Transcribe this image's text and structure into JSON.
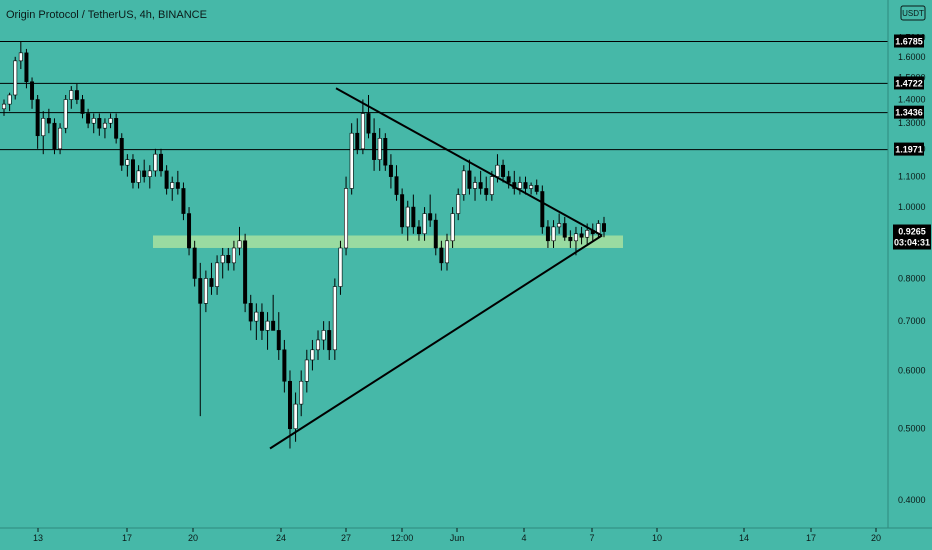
{
  "header": {
    "title": "Origin Protocol / TetherUS, 4h, BINANCE",
    "currency_badge": "USDT"
  },
  "colors": {
    "background": "#46b8a8",
    "candle_up": "#ffffff",
    "candle_down": "#000000",
    "lines": "#000000",
    "zone": "#a8e0a0",
    "price_tag": "#000000"
  },
  "chart_data": {
    "type": "candlestick",
    "ylim": [
      0.37,
      1.74
    ],
    "y_scale": "log",
    "y_ticks": [
      "0.4000",
      "0.5000",
      "0.6000",
      "0.7000",
      "0.8000",
      "0.9000",
      "1.0000",
      "1.1000",
      "1.2000",
      "1.3000",
      "1.4000",
      "1.5000",
      "1.6000",
      "1.7000"
    ],
    "x_ticks": [
      "13",
      "17",
      "20",
      "24",
      "27",
      "12:00",
      "Jun",
      "4",
      "7",
      "10",
      "14",
      "17",
      "20"
    ],
    "horizontal_levels": [
      {
        "label": "1.6785",
        "value": 1.6785
      },
      {
        "label": "1.4722",
        "value": 1.4722
      },
      {
        "label": "1.3436",
        "value": 1.3436
      },
      {
        "label": "1.1971",
        "value": 1.1971
      }
    ],
    "current_price": {
      "label": "0.9265",
      "value": 0.9265,
      "countdown": "03:04:31"
    },
    "support_zone": {
      "low": 0.88,
      "high": 0.915
    },
    "triangle": {
      "upper_start": 1.45,
      "lower_start": 0.47,
      "apex": 0.915
    },
    "candles": [
      [
        1.36,
        1.4,
        1.33,
        1.38
      ],
      [
        1.38,
        1.43,
        1.35,
        1.42
      ],
      [
        1.42,
        1.6,
        1.4,
        1.58
      ],
      [
        1.58,
        1.68,
        1.54,
        1.62
      ],
      [
        1.62,
        1.64,
        1.45,
        1.48
      ],
      [
        1.48,
        1.5,
        1.36,
        1.4
      ],
      [
        1.4,
        1.42,
        1.2,
        1.25
      ],
      [
        1.25,
        1.35,
        1.18,
        1.32
      ],
      [
        1.32,
        1.36,
        1.26,
        1.3
      ],
      [
        1.3,
        1.32,
        1.18,
        1.2
      ],
      [
        1.2,
        1.3,
        1.18,
        1.28
      ],
      [
        1.28,
        1.42,
        1.26,
        1.4
      ],
      [
        1.4,
        1.46,
        1.36,
        1.44
      ],
      [
        1.44,
        1.47,
        1.38,
        1.4
      ],
      [
        1.4,
        1.42,
        1.32,
        1.34
      ],
      [
        1.34,
        1.36,
        1.28,
        1.3
      ],
      [
        1.3,
        1.34,
        1.26,
        1.32
      ],
      [
        1.32,
        1.34,
        1.25,
        1.28
      ],
      [
        1.28,
        1.32,
        1.24,
        1.3
      ],
      [
        1.3,
        1.34,
        1.28,
        1.32
      ],
      [
        1.32,
        1.34,
        1.22,
        1.24
      ],
      [
        1.24,
        1.26,
        1.12,
        1.14
      ],
      [
        1.14,
        1.18,
        1.1,
        1.16
      ],
      [
        1.16,
        1.18,
        1.06,
        1.08
      ],
      [
        1.08,
        1.14,
        1.06,
        1.12
      ],
      [
        1.12,
        1.16,
        1.08,
        1.1
      ],
      [
        1.1,
        1.14,
        1.06,
        1.12
      ],
      [
        1.12,
        1.2,
        1.1,
        1.18
      ],
      [
        1.18,
        1.2,
        1.1,
        1.12
      ],
      [
        1.12,
        1.14,
        1.04,
        1.06
      ],
      [
        1.06,
        1.1,
        1.02,
        1.08
      ],
      [
        1.08,
        1.12,
        1.04,
        1.06
      ],
      [
        1.06,
        1.08,
        0.96,
        0.98
      ],
      [
        0.98,
        1.0,
        0.86,
        0.88
      ],
      [
        0.88,
        0.9,
        0.78,
        0.8
      ],
      [
        0.8,
        0.84,
        0.52,
        0.74
      ],
      [
        0.74,
        0.82,
        0.72,
        0.8
      ],
      [
        0.8,
        0.84,
        0.76,
        0.78
      ],
      [
        0.78,
        0.86,
        0.76,
        0.84
      ],
      [
        0.84,
        0.88,
        0.8,
        0.86
      ],
      [
        0.86,
        0.88,
        0.82,
        0.84
      ],
      [
        0.84,
        0.9,
        0.82,
        0.88
      ],
      [
        0.88,
        0.94,
        0.86,
        0.9
      ],
      [
        0.9,
        0.92,
        0.72,
        0.74
      ],
      [
        0.74,
        0.76,
        0.68,
        0.7
      ],
      [
        0.7,
        0.74,
        0.66,
        0.72
      ],
      [
        0.72,
        0.74,
        0.66,
        0.68
      ],
      [
        0.68,
        0.72,
        0.64,
        0.7
      ],
      [
        0.7,
        0.76,
        0.68,
        0.68
      ],
      [
        0.68,
        0.72,
        0.62,
        0.64
      ],
      [
        0.64,
        0.66,
        0.56,
        0.58
      ],
      [
        0.58,
        0.6,
        0.47,
        0.5
      ],
      [
        0.5,
        0.56,
        0.48,
        0.54
      ],
      [
        0.54,
        0.6,
        0.52,
        0.58
      ],
      [
        0.58,
        0.64,
        0.56,
        0.62
      ],
      [
        0.62,
        0.66,
        0.6,
        0.64
      ],
      [
        0.64,
        0.68,
        0.62,
        0.66
      ],
      [
        0.66,
        0.7,
        0.64,
        0.68
      ],
      [
        0.68,
        0.7,
        0.62,
        0.64
      ],
      [
        0.64,
        0.8,
        0.62,
        0.78
      ],
      [
        0.78,
        0.9,
        0.76,
        0.88
      ],
      [
        0.88,
        1.1,
        0.86,
        1.06
      ],
      [
        1.06,
        1.3,
        1.04,
        1.26
      ],
      [
        1.26,
        1.32,
        1.18,
        1.2
      ],
      [
        1.2,
        1.4,
        1.18,
        1.34
      ],
      [
        1.34,
        1.42,
        1.24,
        1.26
      ],
      [
        1.26,
        1.32,
        1.12,
        1.16
      ],
      [
        1.16,
        1.28,
        1.12,
        1.24
      ],
      [
        1.24,
        1.26,
        1.12,
        1.14
      ],
      [
        1.14,
        1.18,
        1.06,
        1.1
      ],
      [
        1.1,
        1.14,
        1.02,
        1.04
      ],
      [
        1.04,
        1.06,
        0.92,
        0.94
      ],
      [
        0.94,
        1.02,
        0.9,
        1.0
      ],
      [
        1.0,
        1.04,
        0.92,
        0.94
      ],
      [
        0.94,
        0.96,
        0.9,
        0.92
      ],
      [
        0.92,
        1.0,
        0.9,
        0.98
      ],
      [
        0.98,
        1.04,
        0.94,
        0.96
      ],
      [
        0.96,
        0.98,
        0.86,
        0.88
      ],
      [
        0.88,
        0.9,
        0.82,
        0.84
      ],
      [
        0.84,
        0.92,
        0.82,
        0.9
      ],
      [
        0.9,
        1.0,
        0.88,
        0.98
      ],
      [
        0.98,
        1.06,
        0.96,
        1.04
      ],
      [
        1.04,
        1.14,
        1.02,
        1.12
      ],
      [
        1.12,
        1.16,
        1.04,
        1.06
      ],
      [
        1.06,
        1.1,
        1.02,
        1.08
      ],
      [
        1.08,
        1.12,
        1.04,
        1.06
      ],
      [
        1.06,
        1.1,
        1.02,
        1.04
      ],
      [
        1.04,
        1.12,
        1.02,
        1.1
      ],
      [
        1.1,
        1.18,
        1.08,
        1.14
      ],
      [
        1.14,
        1.16,
        1.08,
        1.1
      ],
      [
        1.1,
        1.12,
        1.06,
        1.08
      ],
      [
        1.08,
        1.12,
        1.04,
        1.06
      ],
      [
        1.06,
        1.1,
        1.04,
        1.08
      ],
      [
        1.08,
        1.1,
        1.04,
        1.06
      ],
      [
        1.06,
        1.08,
        1.04,
        1.07
      ],
      [
        1.07,
        1.09,
        1.04,
        1.05
      ],
      [
        1.05,
        1.07,
        0.92,
        0.94
      ],
      [
        0.94,
        0.96,
        0.88,
        0.9
      ],
      [
        0.9,
        0.96,
        0.88,
        0.94
      ],
      [
        0.94,
        0.98,
        0.92,
        0.95
      ],
      [
        0.95,
        0.97,
        0.9,
        0.91
      ],
      [
        0.91,
        0.93,
        0.88,
        0.9
      ],
      [
        0.9,
        0.94,
        0.86,
        0.92
      ],
      [
        0.92,
        0.94,
        0.89,
        0.91
      ],
      [
        0.91,
        0.95,
        0.89,
        0.93
      ],
      [
        0.93,
        0.95,
        0.9,
        0.92
      ],
      [
        0.92,
        0.96,
        0.91,
        0.95
      ],
      [
        0.95,
        0.97,
        0.91,
        0.9265
      ]
    ]
  }
}
